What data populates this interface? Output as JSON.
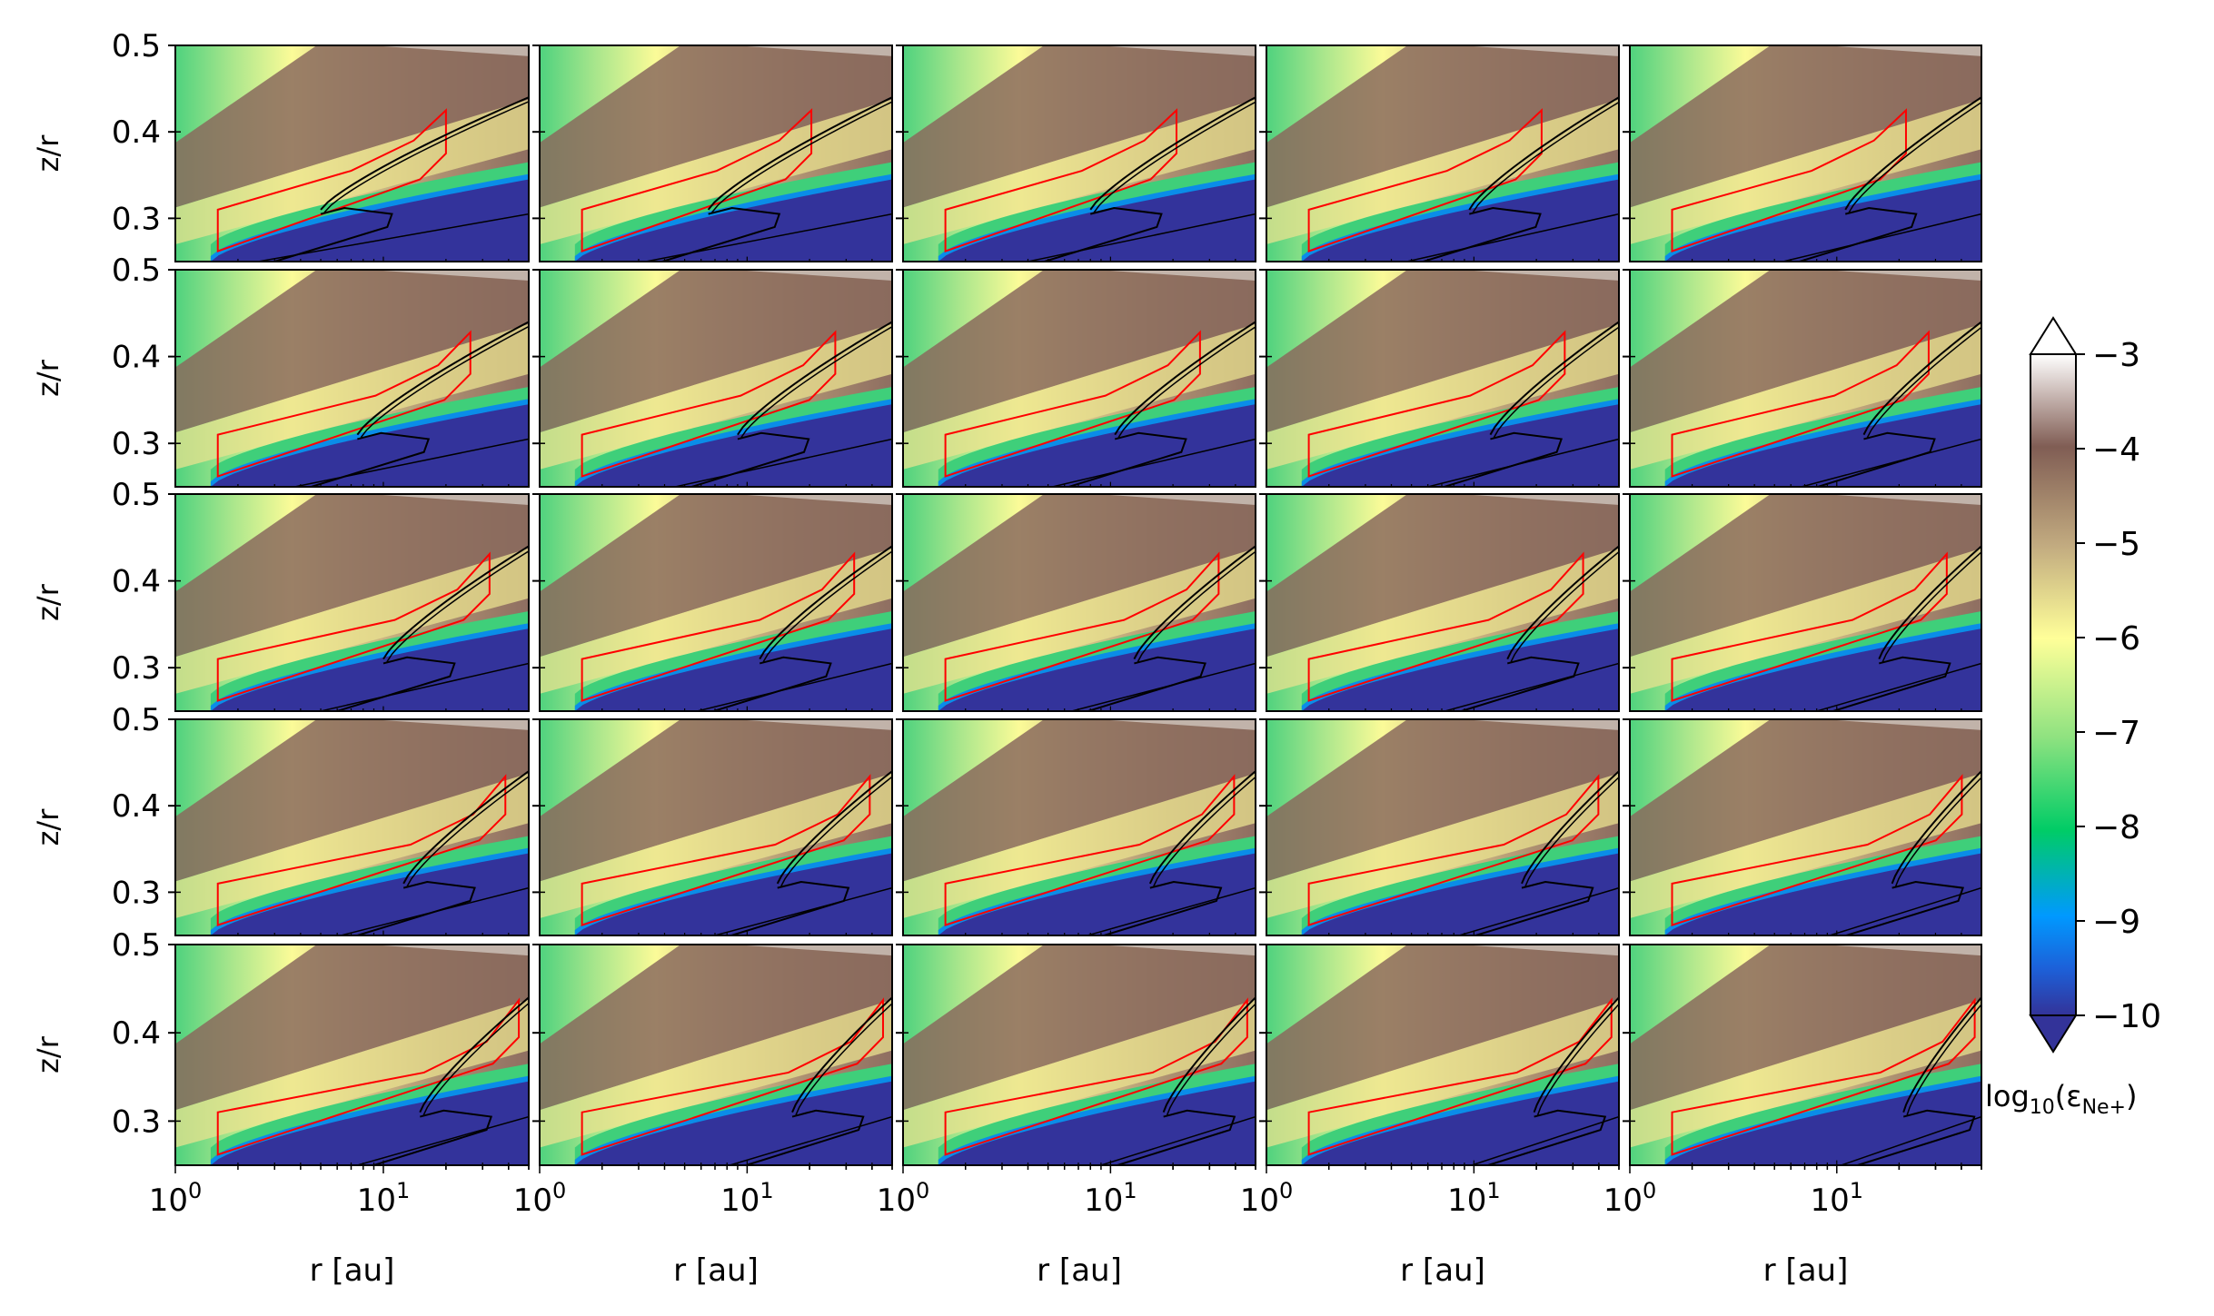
{
  "chart_data": {
    "type": "heatmap",
    "layout": {
      "rows": 5,
      "cols": 5
    },
    "x_axis": {
      "label": "r [au]",
      "scale": "log",
      "xlim": [
        1,
        50
      ],
      "ticks": [
        "10^0",
        "10^1"
      ]
    },
    "y_axis": {
      "label": "z/r",
      "ylim": [
        0.25,
        0.5
      ],
      "ticks": [
        "0.3",
        "0.4",
        "0.5"
      ]
    },
    "colorbar": {
      "label_prefix": "log",
      "label_base": "10",
      "label_quantity": "(ε",
      "label_species": "Ne+",
      "label_suffix": ")",
      "range": [
        -10,
        -3
      ],
      "tick_labels": [
        "−3",
        "−4",
        "−5",
        "−6",
        "−7",
        "−8",
        "−9",
        "−10"
      ],
      "extend": "both",
      "colormap": "terrain"
    },
    "overlays": {
      "box_color": "#ff0000",
      "contour_color": "#000000"
    },
    "panels_note": "25 panels sharing axes; each shows a red polygonal emission region and black abundance contours"
  }
}
